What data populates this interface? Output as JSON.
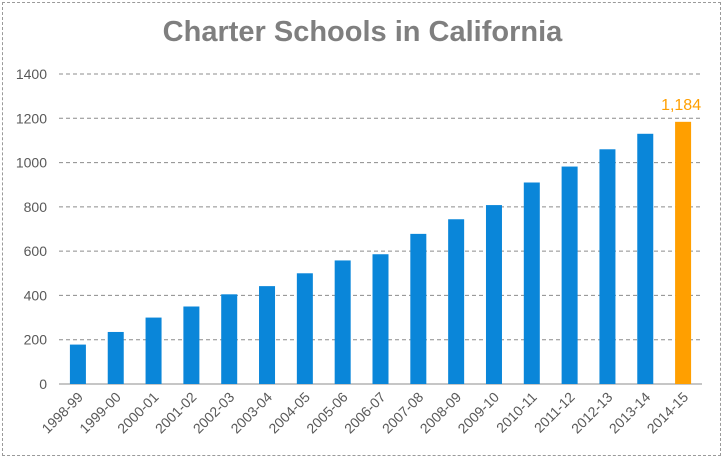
{
  "chart_data": {
    "type": "bar",
    "title": "Charter Schools in California",
    "xlabel": "",
    "ylabel": "",
    "categories": [
      "1998-99",
      "1999-00",
      "2000-01",
      "2001-02",
      "2002-03",
      "2003-04",
      "2004-05",
      "2005-06",
      "2006-07",
      "2007-08",
      "2008-09",
      "2009-10",
      "2010-11",
      "2011-12",
      "2012-13",
      "2013-14",
      "2014-15"
    ],
    "values": [
      178,
      235,
      300,
      350,
      405,
      442,
      500,
      558,
      586,
      678,
      744,
      808,
      910,
      982,
      1060,
      1130,
      1184
    ],
    "ylim": [
      0,
      1400
    ],
    "yticks": [
      0,
      200,
      400,
      600,
      800,
      1000,
      1200,
      1400
    ],
    "grid": true,
    "legend": "none",
    "highlight_index": 16,
    "data_labels": [
      {
        "index": 16,
        "text": "1,184"
      }
    ],
    "colors": {
      "bar": "#0a86d9",
      "highlight": "#ff9f00",
      "grid": "#8c8c8c",
      "axis_text": "#595959",
      "title": "#7f7f7f"
    }
  }
}
